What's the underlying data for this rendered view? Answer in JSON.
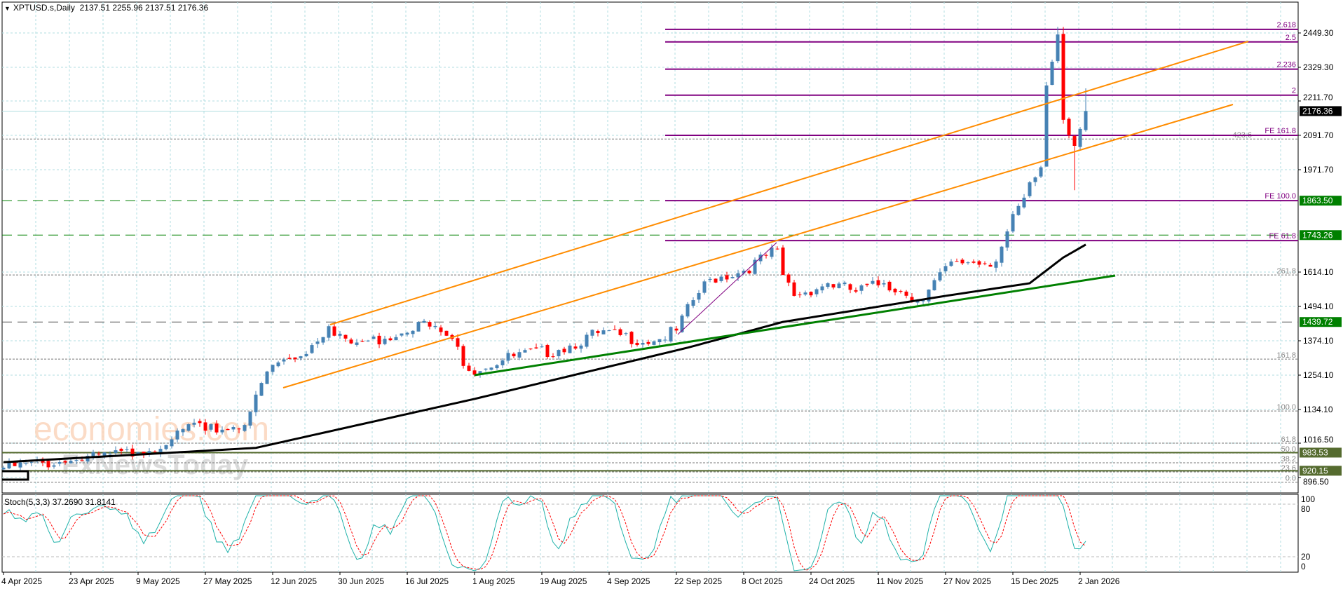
{
  "header": {
    "symbol": "XPTUSD.s,Daily",
    "ohlc": "2137.51 2255.96 2137.51 2176.36",
    "toggle_icon": "triangle-down-icon"
  },
  "stoch": {
    "label": "Stoch(5,3,3) 37.2690 31.8141",
    "axis": [
      "100",
      "80",
      "20",
      "0"
    ]
  },
  "watermark": {
    "logo1": "economies.com",
    "logo2": "FxNewsToday"
  },
  "price_axis": [
    "2449.30",
    "2329.30",
    "2211.70",
    "2091.70",
    "1971.70",
    "1614.10",
    "1494.10",
    "1374.10",
    "1254.10",
    "1134.10",
    "1016.50",
    "896.50"
  ],
  "price_tags": [
    {
      "value": "2176.36",
      "price": 2176.36,
      "bg": "#000000"
    },
    {
      "value": "1863.50",
      "price": 1863.5,
      "bg": "#008000"
    },
    {
      "value": "1743.26",
      "price": 1743.26,
      "bg": "#008000"
    },
    {
      "value": "1439.72",
      "price": 1439.72,
      "bg": "#008000"
    },
    {
      "value": "983.53",
      "price": 983.53,
      "bg": "#556b2f"
    },
    {
      "value": "920.15",
      "price": 920.15,
      "bg": "#556b2f"
    }
  ],
  "fib_extension": [
    {
      "label": "2.618",
      "price": 2462
    },
    {
      "label": "2.5",
      "price": 2418
    },
    {
      "label": "2.236",
      "price": 2323
    },
    {
      "label": "2",
      "price": 2232
    },
    {
      "label": "FE 161.8",
      "price": 2091.7
    },
    {
      "label": "FE 100.0",
      "price": 1863.5
    },
    {
      "label": "FE 61.8",
      "price": 1724
    }
  ],
  "fib_retracement": [
    {
      "label": "423.6",
      "price": 2079
    },
    {
      "label": "261.8",
      "price": 1604
    },
    {
      "label": "161.8",
      "price": 1310
    },
    {
      "label": "100.0",
      "price": 1129
    },
    {
      "label": "61.8",
      "price": 1016.5
    },
    {
      "label": "50.0",
      "price": 982
    },
    {
      "label": "38.2",
      "price": 948
    },
    {
      "label": "23.6",
      "price": 916
    },
    {
      "label": "0.0",
      "price": 880
    }
  ],
  "dates": [
    "4 Apr 2025",
    "23 Apr 2025",
    "9 May 2025",
    "27 May 2025",
    "12 Jun 2025",
    "30 Jun 2025",
    "16 Jul 2025",
    "1 Aug 2025",
    "19 Aug 2025",
    "4 Sep 2025",
    "22 Sep 2025",
    "8 Oct 2025",
    "24 Oct 2025",
    "11 Nov 2025",
    "27 Nov 2025",
    "15 Dec 2025",
    "2 Jan 2026"
  ],
  "colors": {
    "up": "#4682b4",
    "down": "#ff0000",
    "ma": "#000000",
    "channel": "#ff8c00",
    "trend": "#008000",
    "fib": "#800080",
    "stoch_k": "#20b2aa",
    "stoch_d": "#ff0000"
  },
  "price_anchors": [
    [
      0,
      931
    ],
    [
      12,
      955
    ],
    [
      24,
      985
    ],
    [
      30,
      1030
    ],
    [
      34,
      1088
    ],
    [
      36,
      1060
    ],
    [
      43,
      1080
    ],
    [
      45,
      1186
    ],
    [
      48,
      1290
    ],
    [
      53,
      1320
    ],
    [
      58,
      1425
    ],
    [
      62,
      1365
    ],
    [
      68,
      1381
    ],
    [
      74,
      1440
    ],
    [
      80,
      1381
    ],
    [
      83,
      1269
    ],
    [
      91,
      1320
    ],
    [
      99,
      1342
    ],
    [
      106,
      1401
    ],
    [
      116,
      1372
    ],
    [
      120,
      1410
    ],
    [
      123,
      1516
    ],
    [
      126,
      1590
    ],
    [
      132,
      1619
    ],
    [
      138,
      1695
    ],
    [
      139,
      1604
    ],
    [
      141,
      1531
    ],
    [
      147,
      1575
    ],
    [
      152,
      1546
    ],
    [
      157,
      1575
    ],
    [
      164,
      1516
    ],
    [
      169,
      1651
    ],
    [
      177,
      1651
    ],
    [
      179,
      1756
    ],
    [
      182,
      1874
    ],
    [
      185,
      1980
    ],
    [
      186,
      2266
    ],
    [
      188,
      2444
    ],
    [
      189,
      2146
    ],
    [
      191,
      2055
    ],
    [
      192,
      2114
    ],
    [
      193,
      2176.36
    ]
  ],
  "ma_anchors": [
    [
      0,
      950
    ],
    [
      45,
      1000
    ],
    [
      84,
      1171
    ],
    [
      122,
      1350
    ],
    [
      139,
      1440
    ],
    [
      168,
      1531
    ],
    [
      183,
      1575
    ],
    [
      189,
      1665
    ],
    [
      193,
      1710
    ]
  ]
}
